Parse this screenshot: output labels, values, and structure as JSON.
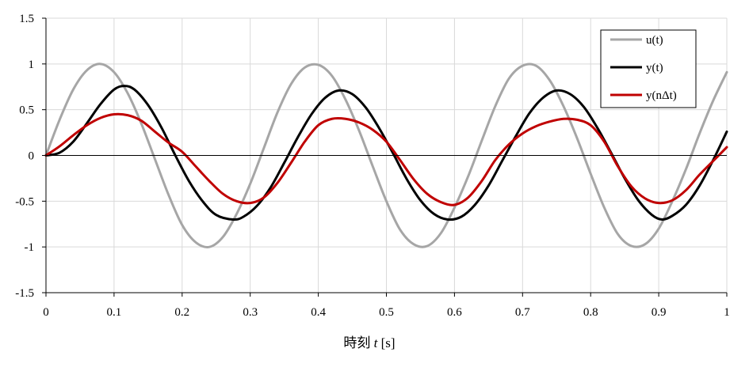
{
  "chart_data": {
    "type": "line",
    "xlabel": "時刻 t [s]",
    "xlabel_prefix": "時刻 ",
    "xlabel_var": "t",
    "xlabel_unit": " [s]",
    "ylabel": "",
    "xlim": [
      0,
      1
    ],
    "ylim": [
      -1.5,
      1.5
    ],
    "x_ticks": [
      "0",
      "0.1",
      "0.2",
      "0.3",
      "0.4",
      "0.5",
      "0.6",
      "0.7",
      "0.8",
      "0.9",
      "1"
    ],
    "y_ticks": [
      "1.5",
      "1",
      "0.5",
      "0",
      "-0.5",
      "-1",
      "-1.5"
    ],
    "grid": true,
    "legend_position": "top-right",
    "series": [
      {
        "name": "u(t)",
        "color": "#a6a6a6",
        "points": [
          [
            0,
            0
          ],
          [
            0.02,
            0.39
          ],
          [
            0.04,
            0.72
          ],
          [
            0.06,
            0.93
          ],
          [
            0.08,
            1.0
          ],
          [
            0.1,
            0.91
          ],
          [
            0.12,
            0.68
          ],
          [
            0.14,
            0.35
          ],
          [
            0.16,
            -0.04
          ],
          [
            0.18,
            -0.43
          ],
          [
            0.2,
            -0.76
          ],
          [
            0.22,
            -0.95
          ],
          [
            0.24,
            -1.0
          ],
          [
            0.26,
            -0.89
          ],
          [
            0.28,
            -0.64
          ],
          [
            0.3,
            -0.31
          ],
          [
            0.32,
            0.08
          ],
          [
            0.34,
            0.47
          ],
          [
            0.36,
            0.78
          ],
          [
            0.38,
            0.96
          ],
          [
            0.4,
            0.99
          ],
          [
            0.42,
            0.87
          ],
          [
            0.44,
            0.61
          ],
          [
            0.46,
            0.27
          ],
          [
            0.48,
            -0.12
          ],
          [
            0.5,
            -0.5
          ],
          [
            0.52,
            -0.81
          ],
          [
            0.54,
            -0.97
          ],
          [
            0.56,
            -0.99
          ],
          [
            0.58,
            -0.85
          ],
          [
            0.6,
            -0.57
          ],
          [
            0.62,
            -0.23
          ],
          [
            0.64,
            0.16
          ],
          [
            0.66,
            0.54
          ],
          [
            0.68,
            0.84
          ],
          [
            0.7,
            0.98
          ],
          [
            0.72,
            0.98
          ],
          [
            0.74,
            0.82
          ],
          [
            0.76,
            0.54
          ],
          [
            0.78,
            0.19
          ],
          [
            0.8,
            -0.2
          ],
          [
            0.82,
            -0.57
          ],
          [
            0.84,
            -0.86
          ],
          [
            0.86,
            -0.99
          ],
          [
            0.88,
            -0.97
          ],
          [
            0.9,
            -0.8
          ],
          [
            0.92,
            -0.5
          ],
          [
            0.94,
            -0.15
          ],
          [
            0.96,
            0.24
          ],
          [
            0.98,
            0.6
          ],
          [
            1.0,
            0.91
          ]
        ]
      },
      {
        "name": "y(t)",
        "color": "#000000",
        "points": [
          [
            0,
            0
          ],
          [
            0.02,
            0.03
          ],
          [
            0.04,
            0.15
          ],
          [
            0.06,
            0.35
          ],
          [
            0.08,
            0.56
          ],
          [
            0.1,
            0.72
          ],
          [
            0.115,
            0.76
          ],
          [
            0.13,
            0.72
          ],
          [
            0.15,
            0.55
          ],
          [
            0.17,
            0.3
          ],
          [
            0.19,
            0.0
          ],
          [
            0.21,
            -0.28
          ],
          [
            0.23,
            -0.5
          ],
          [
            0.25,
            -0.65
          ],
          [
            0.275,
            -0.7
          ],
          [
            0.29,
            -0.67
          ],
          [
            0.31,
            -0.55
          ],
          [
            0.33,
            -0.35
          ],
          [
            0.35,
            -0.08
          ],
          [
            0.37,
            0.2
          ],
          [
            0.39,
            0.45
          ],
          [
            0.41,
            0.63
          ],
          [
            0.43,
            0.71
          ],
          [
            0.45,
            0.67
          ],
          [
            0.47,
            0.52
          ],
          [
            0.49,
            0.29
          ],
          [
            0.51,
            0.02
          ],
          [
            0.53,
            -0.26
          ],
          [
            0.55,
            -0.49
          ],
          [
            0.57,
            -0.64
          ],
          [
            0.59,
            -0.7
          ],
          [
            0.61,
            -0.67
          ],
          [
            0.63,
            -0.54
          ],
          [
            0.65,
            -0.33
          ],
          [
            0.67,
            -0.06
          ],
          [
            0.69,
            0.21
          ],
          [
            0.71,
            0.46
          ],
          [
            0.73,
            0.63
          ],
          [
            0.75,
            0.71
          ],
          [
            0.77,
            0.67
          ],
          [
            0.79,
            0.53
          ],
          [
            0.81,
            0.3
          ],
          [
            0.83,
            0.03
          ],
          [
            0.85,
            -0.25
          ],
          [
            0.87,
            -0.49
          ],
          [
            0.89,
            -0.65
          ],
          [
            0.905,
            -0.7
          ],
          [
            0.92,
            -0.66
          ],
          [
            0.94,
            -0.54
          ],
          [
            0.96,
            -0.33
          ],
          [
            0.98,
            -0.05
          ],
          [
            1.0,
            0.26
          ]
        ]
      },
      {
        "name": "y(nΔt)",
        "color": "#c00000",
        "points": [
          [
            0,
            0
          ],
          [
            0.02,
            0.1
          ],
          [
            0.04,
            0.22
          ],
          [
            0.06,
            0.33
          ],
          [
            0.08,
            0.41
          ],
          [
            0.1,
            0.45
          ],
          [
            0.12,
            0.44
          ],
          [
            0.14,
            0.38
          ],
          [
            0.16,
            0.26
          ],
          [
            0.18,
            0.14
          ],
          [
            0.2,
            0.04
          ],
          [
            0.22,
            -0.12
          ],
          [
            0.24,
            -0.28
          ],
          [
            0.26,
            -0.42
          ],
          [
            0.28,
            -0.5
          ],
          [
            0.3,
            -0.52
          ],
          [
            0.32,
            -0.46
          ],
          [
            0.34,
            -0.3
          ],
          [
            0.36,
            -0.08
          ],
          [
            0.38,
            0.15
          ],
          [
            0.4,
            0.33
          ],
          [
            0.42,
            0.4
          ],
          [
            0.44,
            0.4
          ],
          [
            0.46,
            0.36
          ],
          [
            0.48,
            0.28
          ],
          [
            0.5,
            0.15
          ],
          [
            0.52,
            -0.05
          ],
          [
            0.54,
            -0.26
          ],
          [
            0.56,
            -0.42
          ],
          [
            0.58,
            -0.51
          ],
          [
            0.6,
            -0.54
          ],
          [
            0.62,
            -0.46
          ],
          [
            0.64,
            -0.28
          ],
          [
            0.66,
            -0.05
          ],
          [
            0.68,
            0.12
          ],
          [
            0.7,
            0.24
          ],
          [
            0.72,
            0.32
          ],
          [
            0.74,
            0.37
          ],
          [
            0.76,
            0.4
          ],
          [
            0.78,
            0.39
          ],
          [
            0.8,
            0.33
          ],
          [
            0.82,
            0.15
          ],
          [
            0.84,
            -0.12
          ],
          [
            0.86,
            -0.34
          ],
          [
            0.88,
            -0.47
          ],
          [
            0.9,
            -0.52
          ],
          [
            0.92,
            -0.49
          ],
          [
            0.94,
            -0.38
          ],
          [
            0.96,
            -0.21
          ],
          [
            0.98,
            -0.06
          ],
          [
            1.0,
            0.09
          ]
        ]
      }
    ]
  }
}
